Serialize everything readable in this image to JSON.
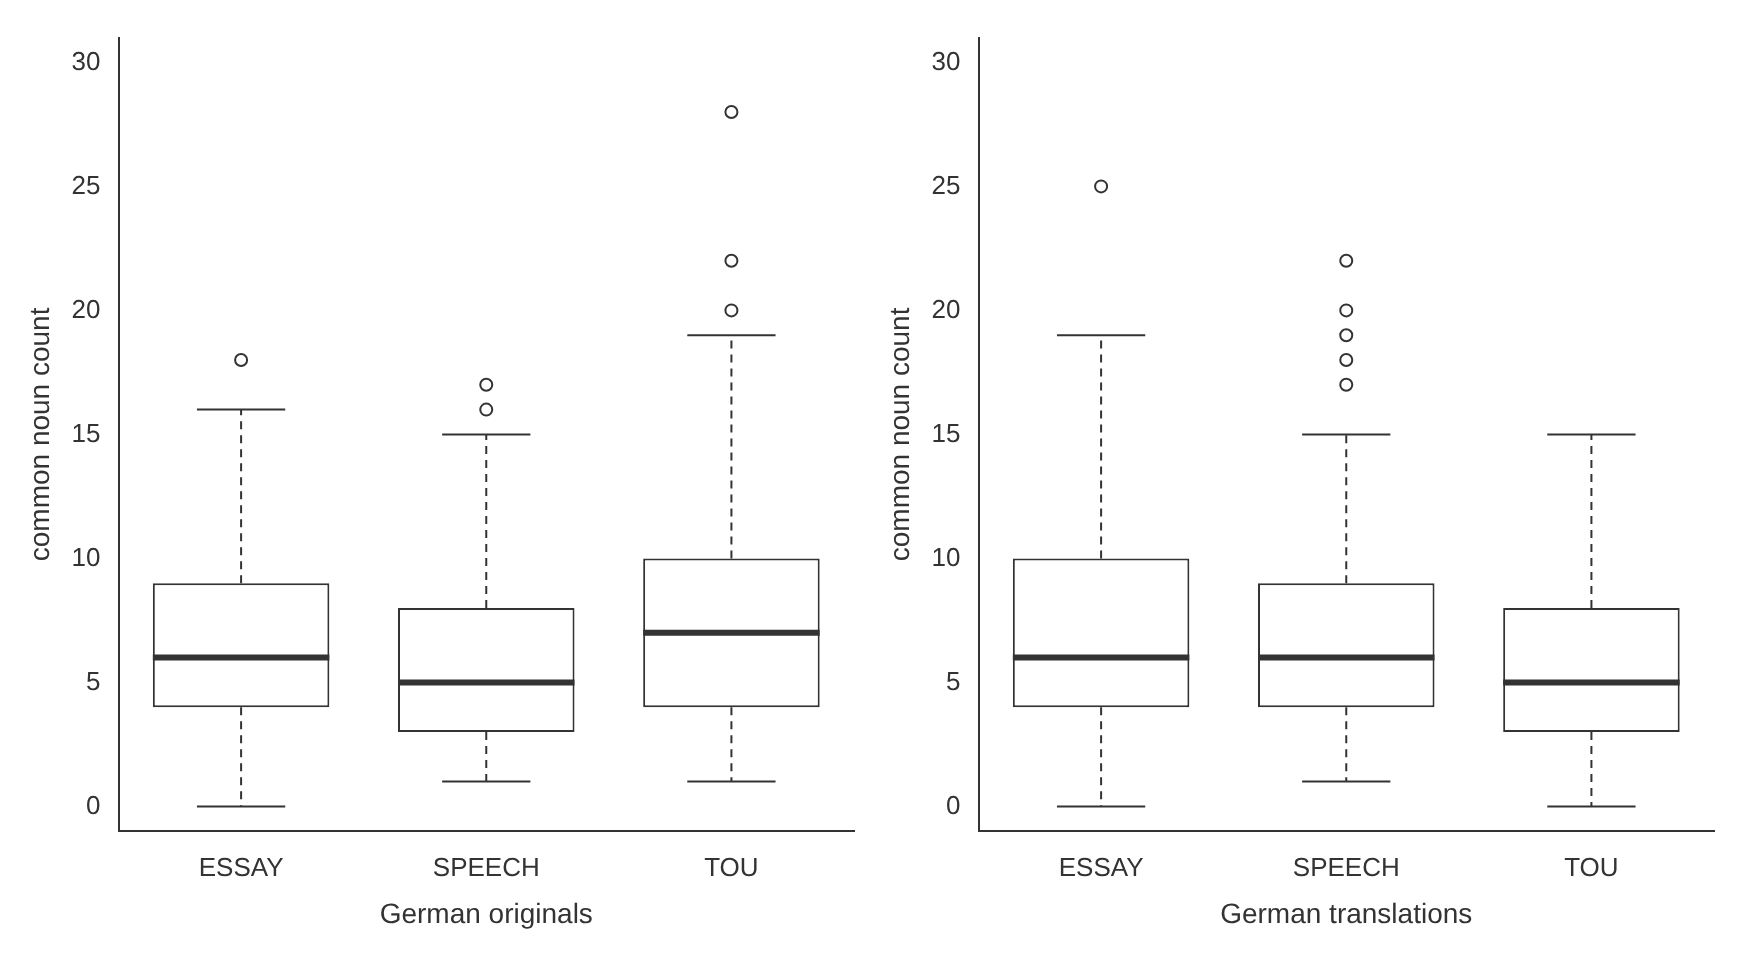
{
  "chart_data": [
    {
      "type": "box",
      "xlabel": "German originals",
      "ylabel": "common noun count",
      "categories": [
        "ESSAY",
        "SPEECH",
        "TOU"
      ],
      "ylim": [
        -1,
        31
      ],
      "yticks": [
        0,
        5,
        10,
        15,
        20,
        25,
        30
      ],
      "grid": false,
      "boxes": [
        {
          "low": 0,
          "q1": 4,
          "median": 6,
          "q3": 9,
          "high": 16,
          "outliers": [
            18
          ]
        },
        {
          "low": 1,
          "q1": 3,
          "median": 5,
          "q3": 8,
          "high": 15,
          "outliers": [
            16,
            17
          ]
        },
        {
          "low": 1,
          "q1": 4,
          "median": 7,
          "q3": 10,
          "high": 19,
          "outliers": [
            20,
            22,
            28
          ]
        }
      ]
    },
    {
      "type": "box",
      "xlabel": "German translations",
      "ylabel": "common noun count",
      "categories": [
        "ESSAY",
        "SPEECH",
        "TOU"
      ],
      "ylim": [
        -1,
        31
      ],
      "yticks": [
        0,
        5,
        10,
        15,
        20,
        25,
        30
      ],
      "grid": false,
      "boxes": [
        {
          "low": 0,
          "q1": 4,
          "median": 6,
          "q3": 10,
          "high": 19,
          "outliers": [
            25
          ]
        },
        {
          "low": 1,
          "q1": 4,
          "median": 6,
          "q3": 9,
          "high": 15,
          "outliers": [
            17,
            18,
            19,
            20,
            22
          ]
        },
        {
          "low": 0,
          "q1": 3,
          "median": 5,
          "q3": 8,
          "high": 15
        }
      ]
    }
  ]
}
